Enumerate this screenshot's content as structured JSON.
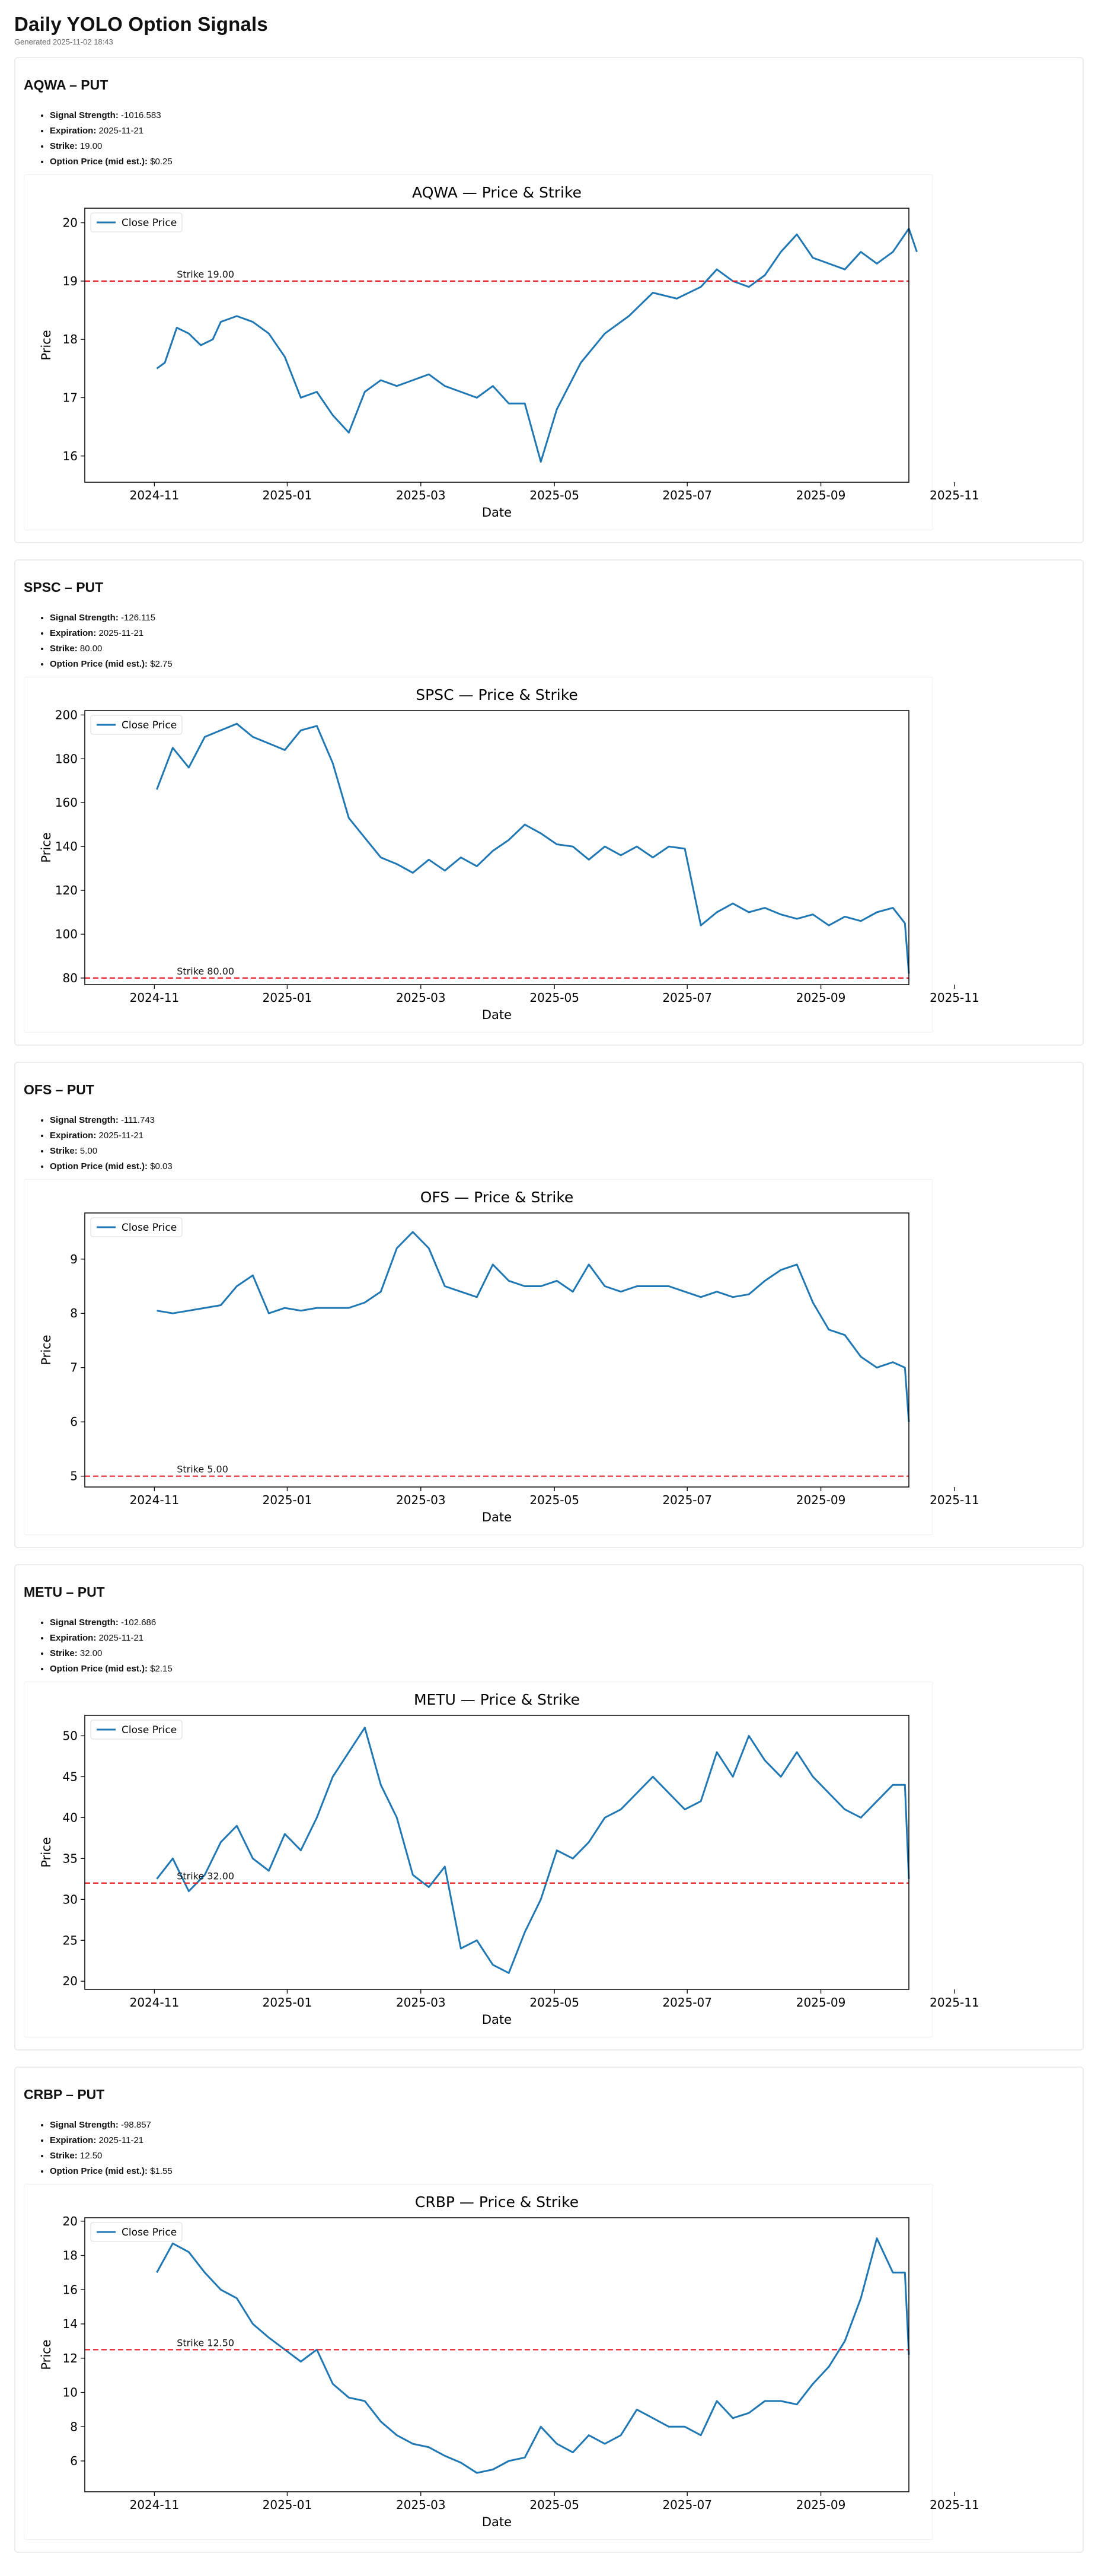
{
  "page": {
    "title": "Daily YOLO Option Signals",
    "generated": "Generated 2025-11-02 18:43"
  },
  "labels": {
    "signal_strength": "Signal Strength:",
    "expiration": "Expiration:",
    "strike": "Strike:",
    "option_price": "Option Price (mid est.):"
  },
  "colors": {
    "line": "#1f77b4",
    "strike": "#e8202a",
    "axis": "#000000"
  },
  "signals": [
    {
      "heading": "AQWA – PUT",
      "signal_strength": "-1016.583",
      "expiration": "2025-11-21",
      "strike": "19.00",
      "option_price": "$0.25"
    },
    {
      "heading": "SPSC – PUT",
      "signal_strength": "-126.115",
      "expiration": "2025-11-21",
      "strike": "80.00",
      "option_price": "$2.75"
    },
    {
      "heading": "OFS – PUT",
      "signal_strength": "-111.743",
      "expiration": "2025-11-21",
      "strike": "5.00",
      "option_price": "$0.03"
    },
    {
      "heading": "METU – PUT",
      "signal_strength": "-102.686",
      "expiration": "2025-11-21",
      "strike": "32.00",
      "option_price": "$2.15"
    },
    {
      "heading": "CRBP – PUT",
      "signal_strength": "-98.857",
      "expiration": "2025-11-21",
      "strike": "12.50",
      "option_price": "$1.55"
    }
  ],
  "chart_data": [
    {
      "type": "line",
      "title": "AQWA — Price & Strike",
      "xlabel": "Date",
      "ylabel": "Price",
      "legend": "Close Price",
      "legend_position": "top-left",
      "xlim": [
        2024.83,
        2025.86
      ],
      "ylim": [
        15.55,
        20.25
      ],
      "xticks": [
        2024.917,
        2025.083,
        2025.25,
        2025.417,
        2025.583,
        2025.75,
        2025.917
      ],
      "xticklabels": [
        "2024-11",
        "2025-01",
        "2025-03",
        "2025-05",
        "2025-07",
        "2025-09",
        "2025-11"
      ],
      "yticks": [
        16,
        17,
        18,
        19,
        20
      ],
      "yticklabels": [
        "16",
        "17",
        "18",
        "19",
        "20"
      ],
      "strike": 19.0,
      "strike_label": "Strike 19.00",
      "series": [
        {
          "name": "Close Price",
          "x": [
            2024.92,
            2024.93,
            2024.945,
            2024.96,
            2024.975,
            2024.99,
            2025.0,
            2025.02,
            2025.04,
            2025.06,
            2025.08,
            2025.1,
            2025.12,
            2025.14,
            2025.16,
            2025.18,
            2025.2,
            2025.22,
            2025.24,
            2025.26,
            2025.28,
            2025.3,
            2025.32,
            2025.34,
            2025.36,
            2025.38,
            2025.4,
            2025.42,
            2025.45,
            2025.48,
            2025.51,
            2025.54,
            2025.57,
            2025.6,
            2025.62,
            2025.64,
            2025.66,
            2025.68,
            2025.7,
            2025.72,
            2025.74,
            2025.76,
            2025.78,
            2025.8,
            2025.82,
            2025.84,
            2025.86,
            2025.87
          ],
          "y": [
            17.5,
            17.6,
            18.2,
            18.1,
            17.9,
            18.0,
            18.3,
            18.4,
            18.3,
            18.1,
            17.7,
            17.0,
            17.1,
            16.7,
            16.4,
            17.1,
            17.3,
            17.2,
            17.3,
            17.4,
            17.2,
            17.1,
            17.0,
            17.2,
            16.9,
            16.9,
            15.9,
            16.8,
            17.6,
            18.1,
            18.4,
            18.8,
            18.7,
            18.9,
            19.2,
            19.0,
            18.9,
            19.1,
            19.5,
            19.8,
            19.4,
            19.3,
            19.2,
            19.5,
            19.3,
            19.5,
            19.9,
            19.5
          ]
        }
      ]
    },
    {
      "type": "line",
      "title": "SPSC — Price & Strike",
      "xlabel": "Date",
      "ylabel": "Price",
      "legend": "Close Price",
      "legend_position": "top-left",
      "xlim": [
        2024.83,
        2025.86
      ],
      "ylim": [
        77,
        202
      ],
      "xticks": [
        2024.917,
        2025.083,
        2025.25,
        2025.417,
        2025.583,
        2025.75,
        2025.917
      ],
      "xticklabels": [
        "2024-11",
        "2025-01",
        "2025-03",
        "2025-05",
        "2025-07",
        "2025-09",
        "2025-11"
      ],
      "yticks": [
        80,
        100,
        120,
        140,
        160,
        180,
        200
      ],
      "yticklabels": [
        "80",
        "100",
        "120",
        "140",
        "160",
        "180",
        "200"
      ],
      "strike": 80.0,
      "strike_label": "Strike 80.00",
      "series": [
        {
          "name": "Close Price",
          "x": [
            2024.92,
            2024.94,
            2024.96,
            2024.98,
            2025.0,
            2025.02,
            2025.04,
            2025.06,
            2025.08,
            2025.1,
            2025.12,
            2025.14,
            2025.16,
            2025.18,
            2025.2,
            2025.22,
            2025.24,
            2025.26,
            2025.28,
            2025.3,
            2025.32,
            2025.34,
            2025.36,
            2025.38,
            2025.4,
            2025.42,
            2025.44,
            2025.46,
            2025.48,
            2025.5,
            2025.52,
            2025.54,
            2025.56,
            2025.58,
            2025.6,
            2025.62,
            2025.64,
            2025.66,
            2025.68,
            2025.7,
            2025.72,
            2025.74,
            2025.76,
            2025.78,
            2025.8,
            2025.82,
            2025.84,
            2025.855,
            2025.86
          ],
          "y": [
            166,
            185,
            176,
            190,
            193,
            196,
            190,
            187,
            184,
            193,
            195,
            178,
            153,
            144,
            135,
            132,
            128,
            134,
            129,
            135,
            131,
            138,
            143,
            150,
            146,
            141,
            140,
            134,
            140,
            136,
            140,
            135,
            140,
            139,
            104,
            110,
            114,
            110,
            112,
            109,
            107,
            109,
            104,
            108,
            106,
            110,
            112,
            105,
            82
          ]
        }
      ]
    },
    {
      "type": "line",
      "title": "OFS — Price & Strike",
      "xlabel": "Date",
      "ylabel": "Price",
      "legend": "Close Price",
      "legend_position": "top-left",
      "xlim": [
        2024.83,
        2025.86
      ],
      "ylim": [
        4.8,
        9.85
      ],
      "xticks": [
        2024.917,
        2025.083,
        2025.25,
        2025.417,
        2025.583,
        2025.75,
        2025.917
      ],
      "xticklabels": [
        "2024-11",
        "2025-01",
        "2025-03",
        "2025-05",
        "2025-07",
        "2025-09",
        "2025-11"
      ],
      "yticks": [
        5,
        6,
        7,
        8,
        9
      ],
      "yticklabels": [
        "5",
        "6",
        "7",
        "8",
        "9"
      ],
      "strike": 5.0,
      "strike_label": "Strike 5.00",
      "series": [
        {
          "name": "Close Price",
          "x": [
            2024.92,
            2024.94,
            2024.96,
            2024.98,
            2025.0,
            2025.02,
            2025.04,
            2025.06,
            2025.08,
            2025.1,
            2025.12,
            2025.14,
            2025.16,
            2025.18,
            2025.2,
            2025.22,
            2025.24,
            2025.26,
            2025.28,
            2025.3,
            2025.32,
            2025.34,
            2025.36,
            2025.38,
            2025.4,
            2025.42,
            2025.44,
            2025.46,
            2025.48,
            2025.5,
            2025.52,
            2025.54,
            2025.56,
            2025.58,
            2025.6,
            2025.62,
            2025.64,
            2025.66,
            2025.68,
            2025.7,
            2025.72,
            2025.74,
            2025.76,
            2025.78,
            2025.8,
            2025.82,
            2025.84,
            2025.855,
            2025.86
          ],
          "y": [
            8.05,
            8.0,
            8.05,
            8.1,
            8.15,
            8.5,
            8.7,
            8.0,
            8.1,
            8.05,
            8.1,
            8.1,
            8.1,
            8.2,
            8.4,
            9.2,
            9.5,
            9.2,
            8.5,
            8.4,
            8.3,
            8.9,
            8.6,
            8.5,
            8.5,
            8.6,
            8.4,
            8.9,
            8.5,
            8.4,
            8.5,
            8.5,
            8.5,
            8.4,
            8.3,
            8.4,
            8.3,
            8.35,
            8.6,
            8.8,
            8.9,
            8.2,
            7.7,
            7.6,
            7.2,
            7.0,
            7.1,
            7.0,
            6.0
          ]
        }
      ]
    },
    {
      "type": "line",
      "title": "METU — Price & Strike",
      "xlabel": "Date",
      "ylabel": "Price",
      "legend": "Close Price",
      "legend_position": "top-left",
      "xlim": [
        2024.83,
        2025.86
      ],
      "ylim": [
        19,
        52.5
      ],
      "xticks": [
        2024.917,
        2025.083,
        2025.25,
        2025.417,
        2025.583,
        2025.75,
        2025.917
      ],
      "xticklabels": [
        "2024-11",
        "2025-01",
        "2025-03",
        "2025-05",
        "2025-07",
        "2025-09",
        "2025-11"
      ],
      "yticks": [
        20,
        25,
        30,
        35,
        40,
        45,
        50
      ],
      "yticklabels": [
        "20",
        "25",
        "30",
        "35",
        "40",
        "45",
        "50"
      ],
      "strike": 32.0,
      "strike_label": "Strike 32.00",
      "series": [
        {
          "name": "Close Price",
          "x": [
            2024.92,
            2024.94,
            2024.96,
            2024.98,
            2025.0,
            2025.02,
            2025.04,
            2025.06,
            2025.08,
            2025.1,
            2025.12,
            2025.14,
            2025.16,
            2025.18,
            2025.2,
            2025.22,
            2025.24,
            2025.26,
            2025.28,
            2025.3,
            2025.32,
            2025.34,
            2025.36,
            2025.38,
            2025.4,
            2025.42,
            2025.44,
            2025.46,
            2025.48,
            2025.5,
            2025.52,
            2025.54,
            2025.56,
            2025.58,
            2025.6,
            2025.62,
            2025.64,
            2025.66,
            2025.68,
            2025.7,
            2025.72,
            2025.74,
            2025.76,
            2025.78,
            2025.8,
            2025.82,
            2025.84,
            2025.855,
            2025.86
          ],
          "y": [
            32.5,
            35.0,
            31.0,
            33.0,
            37.0,
            39.0,
            35.0,
            33.5,
            38.0,
            36.0,
            40.0,
            45.0,
            48.0,
            51.0,
            44.0,
            40.0,
            33.0,
            31.5,
            34.0,
            24.0,
            25.0,
            22.0,
            21.0,
            26.0,
            30.0,
            36.0,
            35.0,
            37.0,
            40.0,
            41.0,
            43.0,
            45.0,
            43.0,
            41.0,
            42.0,
            48.0,
            45.0,
            50.0,
            47.0,
            45.0,
            48.0,
            45.0,
            43.0,
            41.0,
            40.0,
            42.0,
            44.0,
            44.0,
            32.5
          ]
        }
      ]
    },
    {
      "type": "line",
      "title": "CRBP — Price & Strike",
      "xlabel": "Date",
      "ylabel": "Price",
      "legend": "Close Price",
      "legend_position": "top-left",
      "xlim": [
        2024.83,
        2025.86
      ],
      "ylim": [
        4.2,
        20.2
      ],
      "xticks": [
        2024.917,
        2025.083,
        2025.25,
        2025.417,
        2025.583,
        2025.75,
        2025.917
      ],
      "xticklabels": [
        "2024-11",
        "2025-01",
        "2025-03",
        "2025-05",
        "2025-07",
        "2025-09",
        "2025-11"
      ],
      "yticks": [
        6,
        8,
        10,
        12,
        14,
        16,
        18,
        20
      ],
      "yticklabels": [
        "6",
        "8",
        "10",
        "12",
        "14",
        "16",
        "18",
        "20"
      ],
      "strike": 12.5,
      "strike_label": "Strike 12.50",
      "series": [
        {
          "name": "Close Price",
          "x": [
            2024.92,
            2024.94,
            2024.96,
            2024.98,
            2025.0,
            2025.02,
            2025.04,
            2025.06,
            2025.08,
            2025.1,
            2025.12,
            2025.14,
            2025.16,
            2025.18,
            2025.2,
            2025.22,
            2025.24,
            2025.26,
            2025.28,
            2025.3,
            2025.32,
            2025.34,
            2025.36,
            2025.38,
            2025.4,
            2025.42,
            2025.44,
            2025.46,
            2025.48,
            2025.5,
            2025.52,
            2025.54,
            2025.56,
            2025.58,
            2025.6,
            2025.62,
            2025.64,
            2025.66,
            2025.68,
            2025.7,
            2025.72,
            2025.74,
            2025.76,
            2025.78,
            2025.8,
            2025.82,
            2025.84,
            2025.855,
            2025.86
          ],
          "y": [
            17.0,
            18.7,
            18.2,
            17.0,
            16.0,
            15.5,
            14.0,
            13.2,
            12.5,
            11.8,
            12.5,
            10.5,
            9.7,
            9.5,
            8.3,
            7.5,
            7.0,
            6.8,
            6.3,
            5.9,
            5.3,
            5.5,
            6.0,
            6.2,
            8.0,
            7.0,
            6.5,
            7.5,
            7.0,
            7.5,
            9.0,
            8.5,
            8.0,
            8.0,
            7.5,
            9.5,
            8.5,
            8.8,
            9.5,
            9.5,
            9.3,
            10.5,
            11.5,
            13.0,
            15.5,
            19.0,
            17.0,
            17.0,
            12.2
          ]
        }
      ]
    }
  ]
}
